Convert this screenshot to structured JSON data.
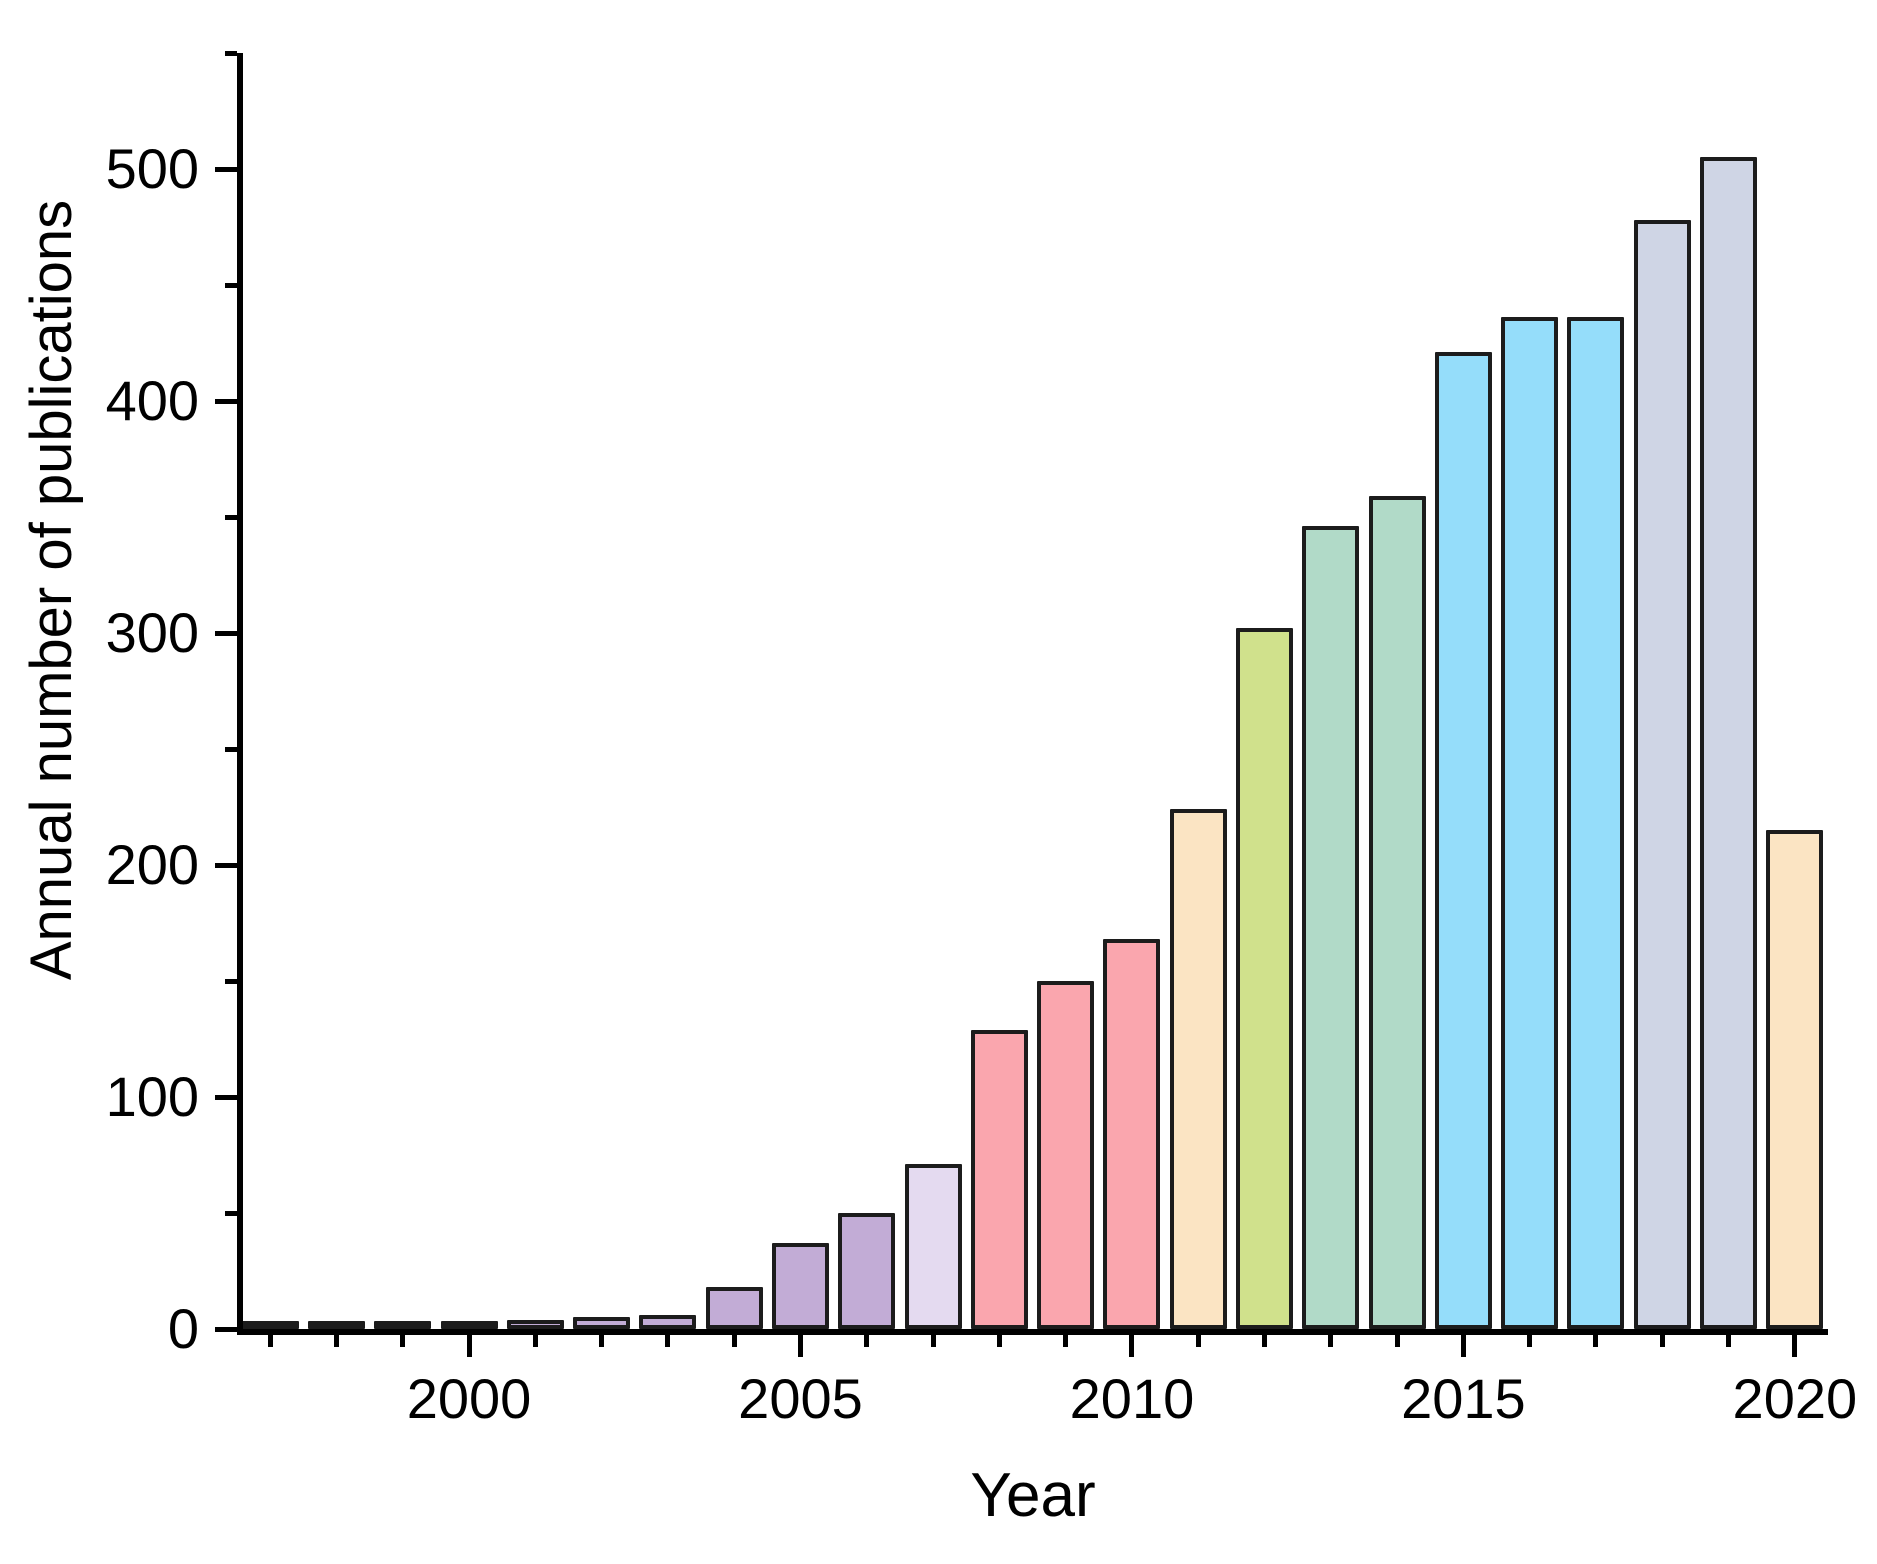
{
  "chart_data": {
    "type": "bar",
    "title": "",
    "xlabel": "Year",
    "ylabel": "Annual number of publications",
    "categories": [
      1997,
      1998,
      1999,
      2000,
      2001,
      2002,
      2003,
      2004,
      2005,
      2006,
      2007,
      2008,
      2009,
      2010,
      2011,
      2012,
      2013,
      2014,
      2015,
      2016,
      2017,
      2018,
      2019,
      2020
    ],
    "values": [
      2,
      1,
      3,
      1,
      4,
      5,
      6,
      18,
      37,
      50,
      71,
      129,
      150,
      168,
      224,
      302,
      346,
      359,
      421,
      436,
      436,
      478,
      505,
      215
    ],
    "bar_colors": [
      "#C2ACD6",
      "#C2ACD6",
      "#C2ACD6",
      "#C2ACD6",
      "#C2ACD6",
      "#C2ACD6",
      "#C2ACD6",
      "#C2ACD6",
      "#C2ACD6",
      "#C2ACD6",
      "#E4DAF0",
      "#FAA6AE",
      "#FAA6AE",
      "#FAA6AE",
      "#FBE4C3",
      "#D0E18C",
      "#B1DAC8",
      "#B1DAC8",
      "#95DDFA",
      "#95DDFA",
      "#95DDFA",
      "#CFD5E5",
      "#CFD5E5",
      "#FBE4C3"
    ],
    "bar_outline_color": "#1c1c1c",
    "axis_color": "#000000",
    "background_color": "#ffffff",
    "xlim": [
      1996.5,
      2020.5
    ],
    "ylim": [
      0,
      550
    ],
    "x_major_ticks": [
      2000,
      2005,
      2010,
      2015,
      2020
    ],
    "y_major_ticks": [
      0,
      100,
      200,
      300,
      400,
      500
    ],
    "y_minor_ticks": [
      50,
      150,
      250,
      350,
      450,
      550
    ],
    "grid": false,
    "legend": null
  }
}
